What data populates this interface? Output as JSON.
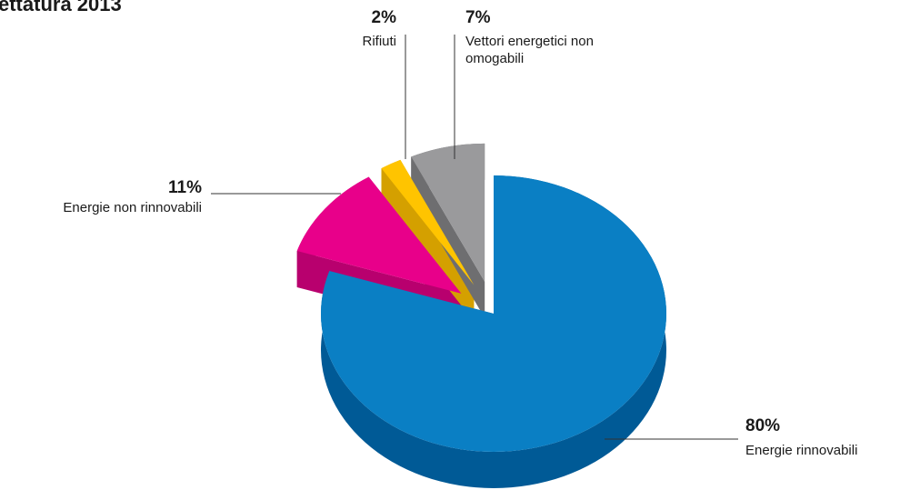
{
  "chart_data": {
    "type": "pie",
    "title": "ettatura 2013",
    "categories": [
      "Energie rinnovabili",
      "Energie non rinnovabili",
      "Rifiuti",
      "Vettori energetici non omogabili"
    ],
    "values": [
      80,
      11,
      2,
      7
    ],
    "value_labels": [
      "80%",
      "11%",
      "2%",
      "7%"
    ],
    "colors": [
      "#0a7fc4",
      "#e8008a",
      "#ffc400",
      "#9a9a9c"
    ],
    "side_colors": [
      "#005a96",
      "#b8006e",
      "#d4a000",
      "#6e6e70"
    ]
  }
}
